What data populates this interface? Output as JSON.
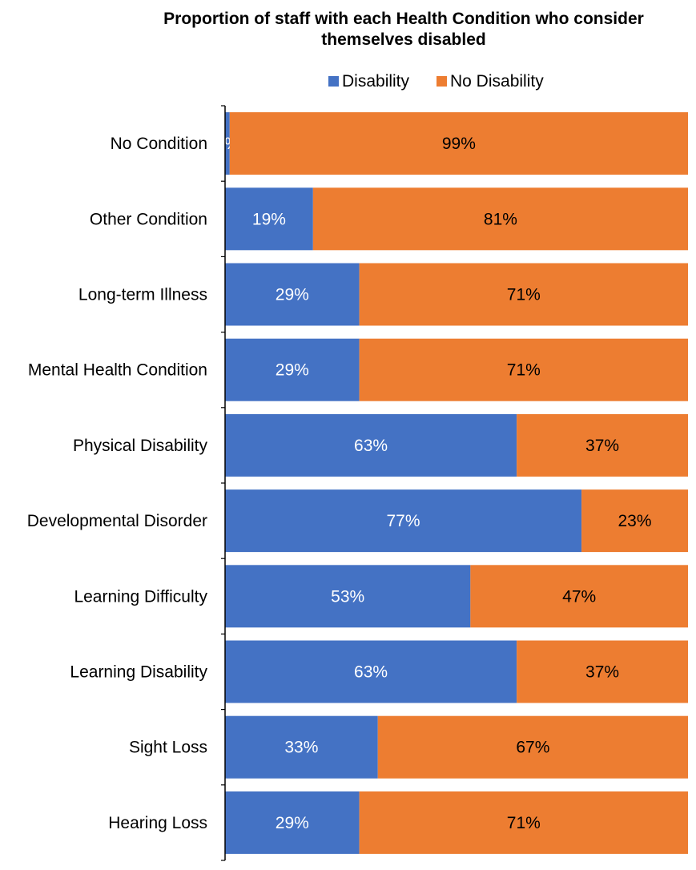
{
  "chart_data": {
    "type": "bar",
    "orientation": "horizontal",
    "stacked": "percent",
    "title": "Proportion of staff with each Health Condition who consider themselves disabled",
    "title_lines": [
      "Proportion of staff with each Health Condition who consider",
      "themselves disabled"
    ],
    "categories": [
      "No Condition",
      "Other Condition",
      "Long-term Illness",
      "Mental Health Condition",
      "Physical Disability",
      "Developmental Disorder",
      "Learning Difficulty",
      "Learning Disability",
      "Sight Loss",
      "Hearing Loss"
    ],
    "series": [
      {
        "name": "Disability",
        "color": "#4472C4",
        "label_color": "#ffffff",
        "values": [
          1,
          19,
          29,
          29,
          63,
          77,
          53,
          63,
          33,
          29
        ],
        "labels": [
          "1%",
          "19%",
          "29%",
          "29%",
          "63%",
          "77%",
          "53%",
          "63%",
          "33%",
          "29%"
        ]
      },
      {
        "name": "No Disability",
        "color": "#ED7D31",
        "label_color": "#000000",
        "values": [
          99,
          81,
          71,
          71,
          37,
          23,
          47,
          37,
          67,
          71
        ],
        "labels": [
          "99%",
          "81%",
          "71%",
          "71%",
          "37%",
          "23%",
          "47%",
          "37%",
          "67%",
          "71%"
        ]
      }
    ],
    "xlim": [
      0,
      100
    ],
    "legend_position": "top",
    "grid": false
  }
}
